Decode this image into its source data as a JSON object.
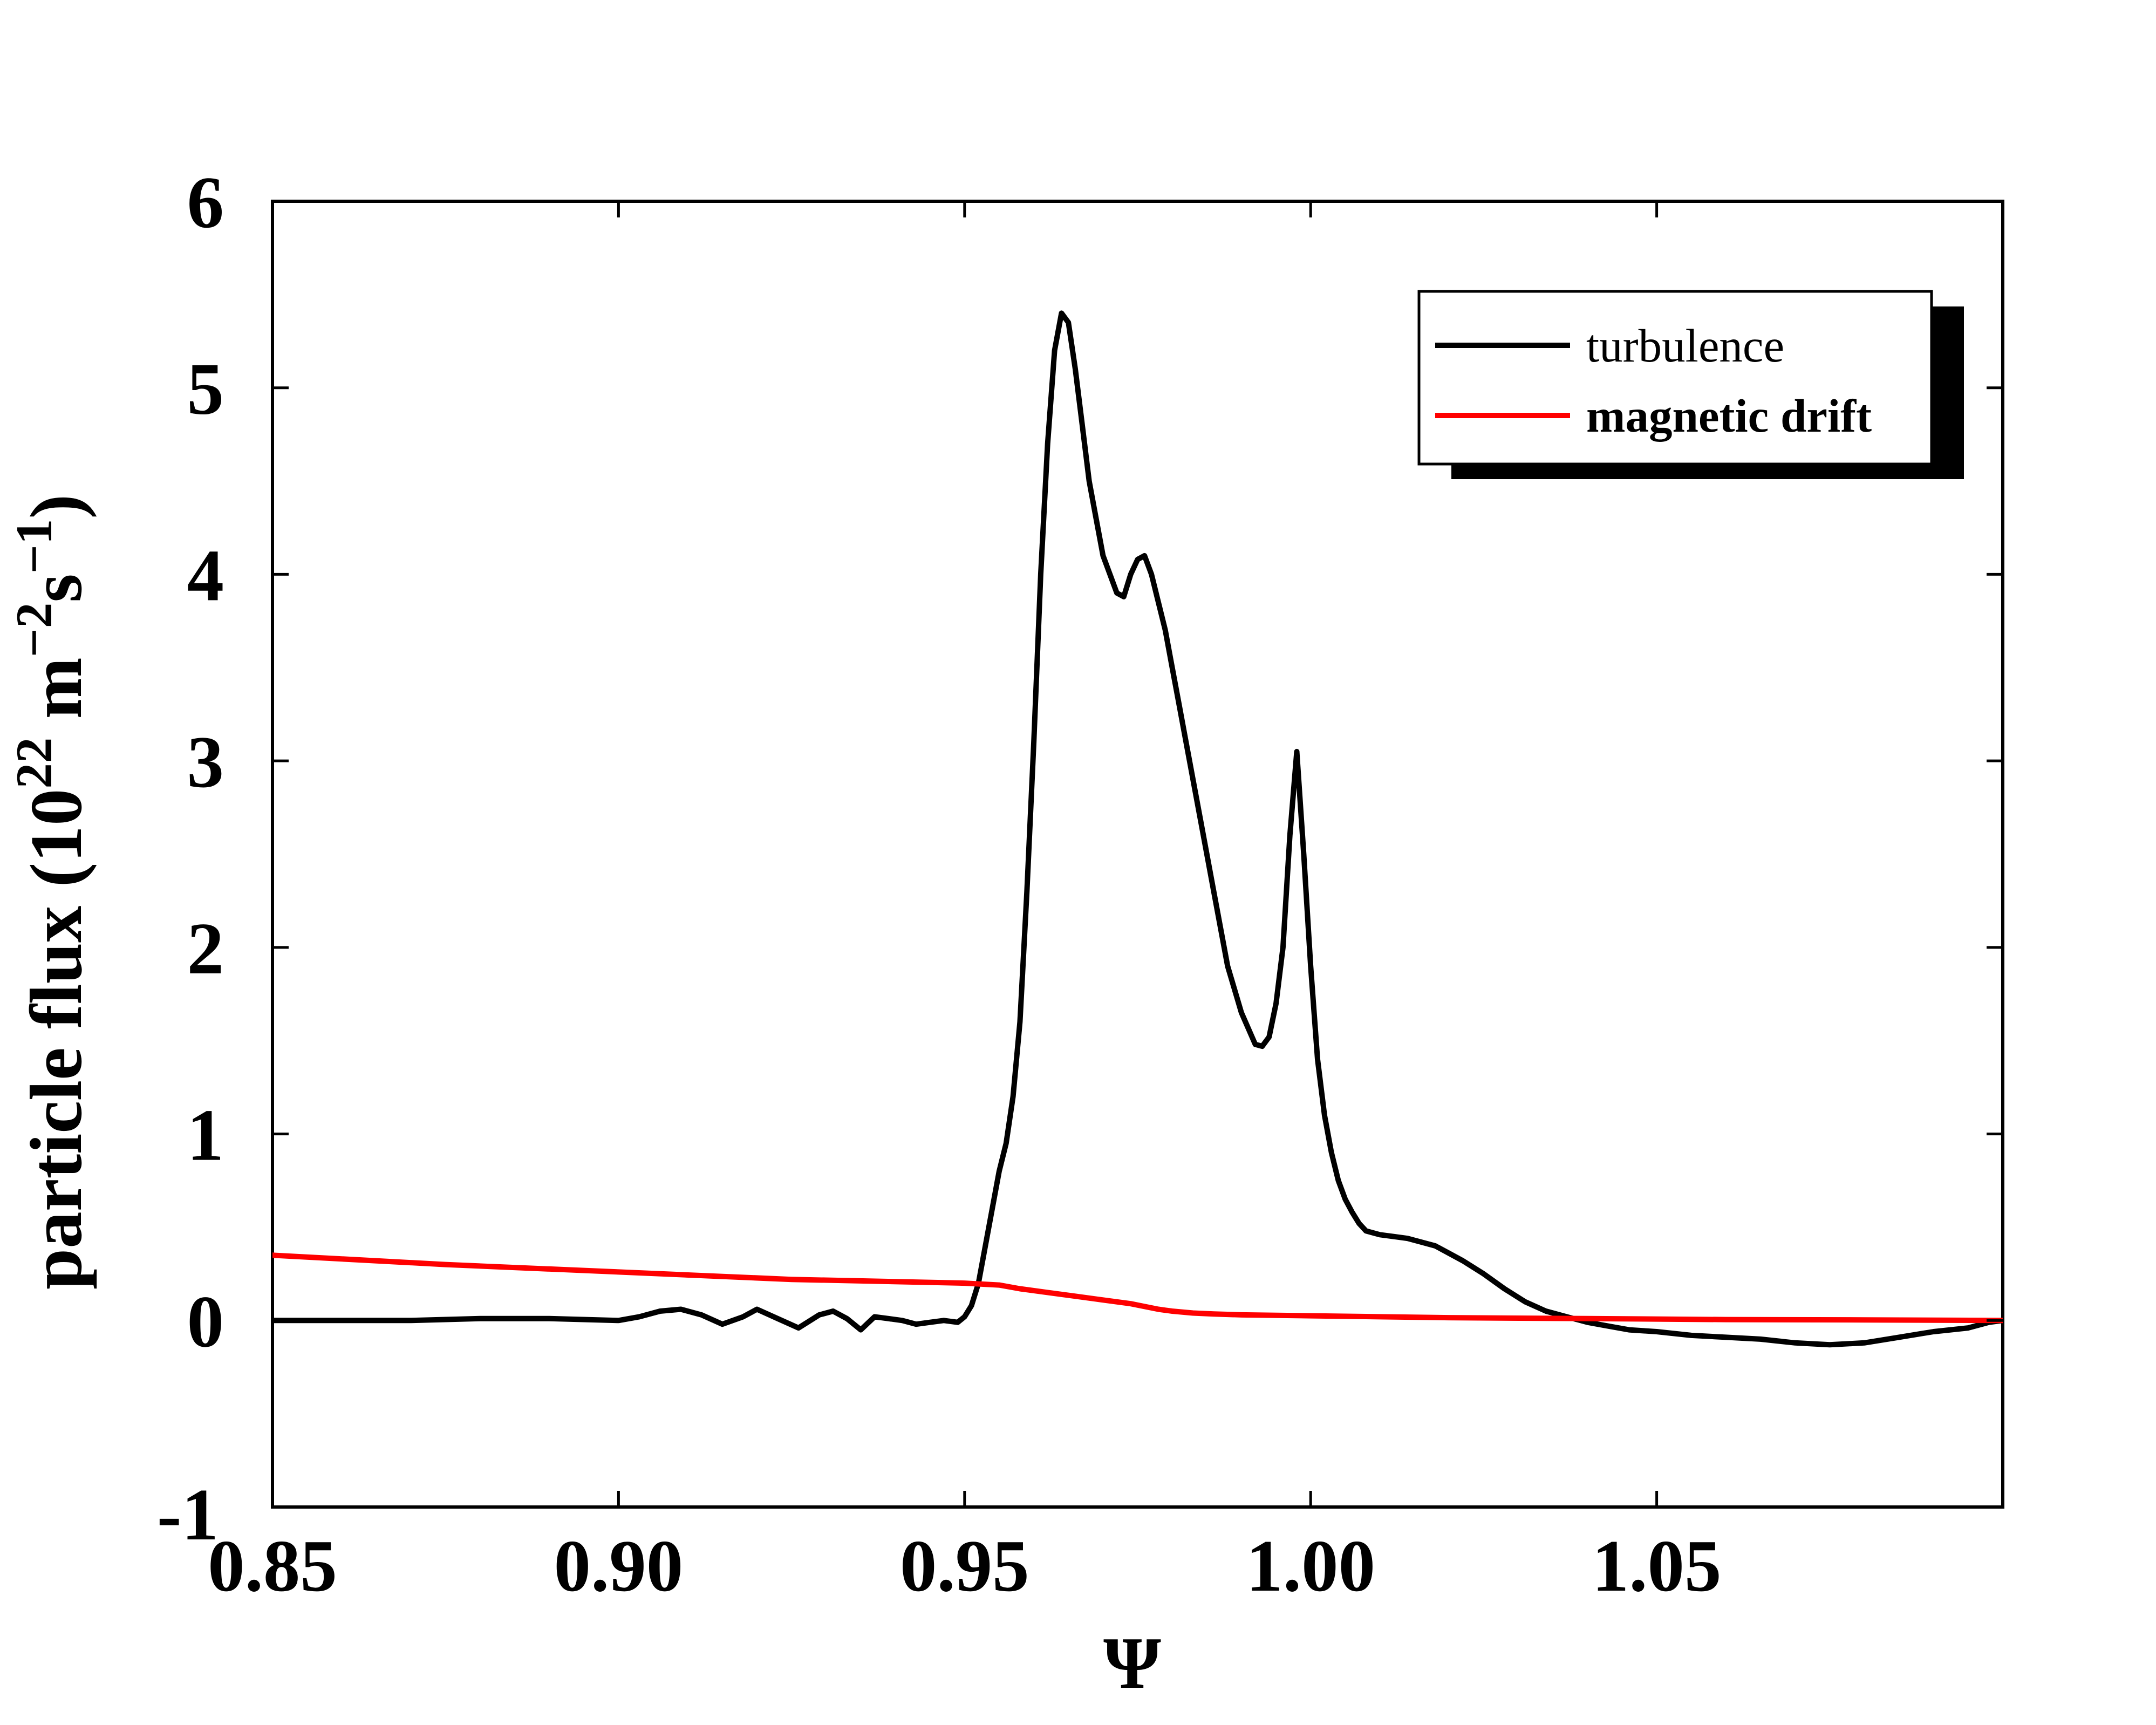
{
  "chart_data": {
    "type": "line",
    "xlabel": "Ψ",
    "ylabel_main": "particle flux (10",
    "ylabel_exp1": "22",
    "ylabel_mid": " m",
    "ylabel_exp2": "−2",
    "ylabel_mid2": "s",
    "ylabel_exp3": "−1",
    "ylabel_end": ")",
    "xlim": [
      0.85,
      1.1
    ],
    "ylim": [
      -1,
      6
    ],
    "x_ticks": [
      0.85,
      0.9,
      0.95,
      1.0,
      1.05
    ],
    "x_tick_labels": [
      "0.85",
      "0.90",
      "0.95",
      "1.00",
      "1.05"
    ],
    "y_ticks": [
      -1,
      0,
      1,
      2,
      3,
      4,
      5,
      6
    ],
    "y_tick_labels": [
      "-1",
      "0",
      "1",
      "2",
      "3",
      "4",
      "5",
      "6"
    ],
    "grid": false,
    "legend_position": "top-right",
    "series": [
      {
        "name": "turbulence",
        "color": "#000000",
        "label_weight": "normal",
        "x": [
          0.85,
          0.87,
          0.88,
          0.89,
          0.9,
          0.903,
          0.906,
          0.909,
          0.912,
          0.915,
          0.918,
          0.92,
          0.923,
          0.926,
          0.929,
          0.931,
          0.933,
          0.935,
          0.937,
          0.939,
          0.941,
          0.943,
          0.945,
          0.947,
          0.949,
          0.95,
          0.951,
          0.952,
          0.953,
          0.954,
          0.955,
          0.956,
          0.957,
          0.958,
          0.959,
          0.96,
          0.961,
          0.962,
          0.963,
          0.964,
          0.965,
          0.966,
          0.967,
          0.968,
          0.969,
          0.97,
          0.971,
          0.972,
          0.973,
          0.974,
          0.975,
          0.976,
          0.977,
          0.978,
          0.979,
          0.98,
          0.981,
          0.982,
          0.984,
          0.986,
          0.988,
          0.99,
          0.992,
          0.993,
          0.994,
          0.995,
          0.996,
          0.997,
          0.998,
          0.999,
          1.0,
          1.001,
          1.002,
          1.003,
          1.004,
          1.005,
          1.006,
          1.007,
          1.008,
          1.01,
          1.012,
          1.014,
          1.016,
          1.018,
          1.02,
          1.022,
          1.025,
          1.028,
          1.031,
          1.034,
          1.037,
          1.04,
          1.043,
          1.046,
          1.05,
          1.055,
          1.06,
          1.065,
          1.07,
          1.075,
          1.08,
          1.085,
          1.09,
          1.095,
          1.098,
          1.1
        ],
        "y": [
          0.0,
          0.0,
          0.01,
          0.01,
          0.0,
          0.02,
          0.05,
          0.06,
          0.03,
          -0.02,
          0.02,
          0.06,
          0.01,
          -0.04,
          0.03,
          0.05,
          0.01,
          -0.05,
          0.02,
          0.01,
          0.0,
          -0.02,
          -0.01,
          0.0,
          -0.01,
          0.02,
          0.08,
          0.2,
          0.4,
          0.6,
          0.8,
          0.95,
          1.2,
          1.6,
          2.3,
          3.1,
          4.0,
          4.7,
          5.2,
          5.4,
          5.35,
          5.1,
          4.8,
          4.5,
          4.3,
          4.1,
          4.0,
          3.9,
          3.88,
          4.0,
          4.08,
          4.1,
          4.0,
          3.85,
          3.7,
          3.5,
          3.3,
          3.1,
          2.7,
          2.3,
          1.9,
          1.65,
          1.48,
          1.47,
          1.52,
          1.7,
          2.0,
          2.6,
          3.05,
          2.5,
          1.9,
          1.4,
          1.1,
          0.9,
          0.75,
          0.65,
          0.58,
          0.52,
          0.48,
          0.46,
          0.45,
          0.44,
          0.42,
          0.4,
          0.36,
          0.32,
          0.25,
          0.17,
          0.1,
          0.05,
          0.02,
          -0.01,
          -0.03,
          -0.05,
          -0.06,
          -0.08,
          -0.09,
          -0.1,
          -0.12,
          -0.13,
          -0.12,
          -0.09,
          -0.06,
          -0.04,
          -0.01,
          0.0
        ]
      },
      {
        "name": "magnetic drift",
        "color": "#ff0000",
        "label_weight": "bold",
        "x": [
          0.85,
          0.875,
          0.9,
          0.925,
          0.95,
          0.955,
          0.958,
          0.962,
          0.966,
          0.97,
          0.974,
          0.978,
          0.98,
          0.983,
          0.986,
          0.99,
          1.0,
          1.01,
          1.02,
          1.04,
          1.06,
          1.08,
          1.1
        ],
        "y": [
          0.35,
          0.3,
          0.26,
          0.22,
          0.2,
          0.19,
          0.17,
          0.15,
          0.13,
          0.11,
          0.09,
          0.06,
          0.05,
          0.04,
          0.035,
          0.03,
          0.025,
          0.02,
          0.015,
          0.01,
          0.005,
          0.003,
          0.0
        ]
      }
    ]
  }
}
